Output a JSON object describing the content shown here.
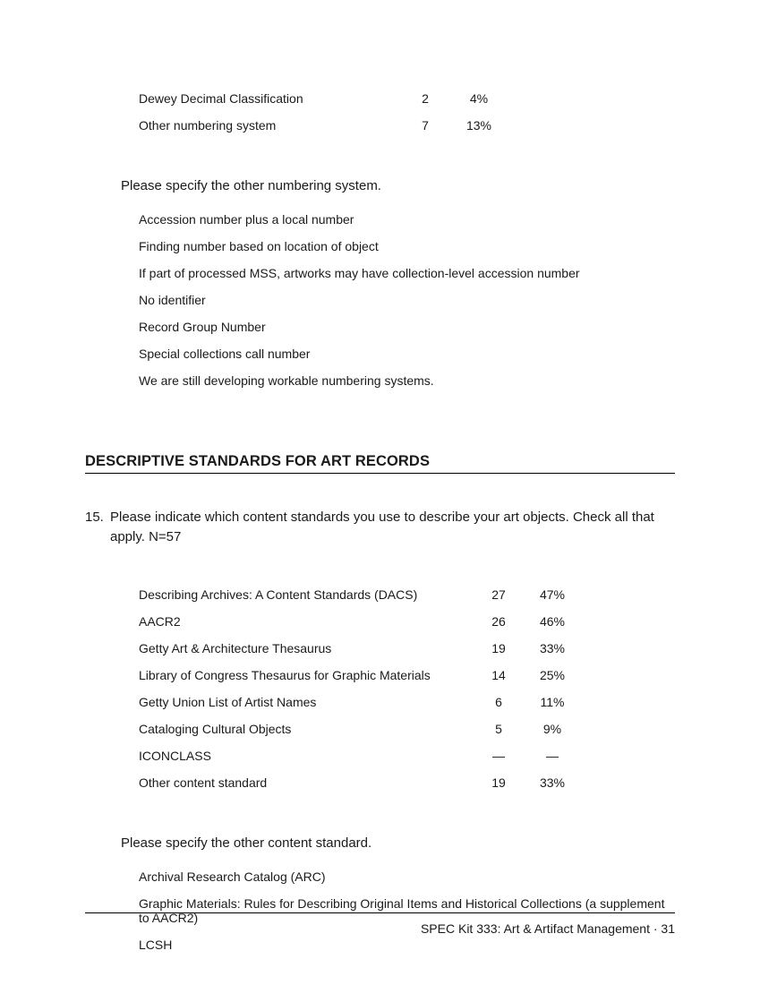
{
  "table1": {
    "rows": [
      {
        "label": "Dewey Decimal Classification",
        "count": "2",
        "pct": "4%"
      },
      {
        "label": "Other numbering system",
        "count": "7",
        "pct": "13%"
      }
    ]
  },
  "subheading1": "Please specify the other numbering system.",
  "responses1": [
    "Accession number plus a local number",
    "Finding number based on location of object",
    "If part of processed MSS, artworks may have collection-level accession number",
    "No identifier",
    "Record Group Number",
    "Special collections call number",
    "We are still developing workable numbering systems."
  ],
  "section_heading": "DESCRIPTIVE STANDARDS FOR ART RECORDS",
  "question": {
    "num": "15.",
    "text": "Please indicate which content standards you use to describe your art objects. Check all that apply. N=57"
  },
  "table2": {
    "rows": [
      {
        "label": "Describing Archives: A Content Standards (DACS)",
        "count": "27",
        "pct": "47%"
      },
      {
        "label": "AACR2",
        "count": "26",
        "pct": "46%"
      },
      {
        "label": "Getty Art & Architecture Thesaurus",
        "count": "19",
        "pct": "33%"
      },
      {
        "label": "Library of Congress Thesaurus for Graphic Materials",
        "count": "14",
        "pct": "25%"
      },
      {
        "label": "Getty Union List of Artist Names",
        "count": "6",
        "pct": "11%"
      },
      {
        "label": "Cataloging Cultural Objects",
        "count": "5",
        "pct": "9%"
      },
      {
        "label": "ICONCLASS",
        "count": "—",
        "pct": "—"
      },
      {
        "label": "Other content standard",
        "count": "19",
        "pct": "33%"
      }
    ]
  },
  "subheading2": "Please specify the other content standard.",
  "responses2": [
    "Archival Research Catalog (ARC)",
    "Graphic Materials: Rules for Describing Original Items and Historical Collections (a supplement to AACR2)",
    "LCSH"
  ],
  "footer": "SPEC Kit 333: Art & Artifact Management  ·  31"
}
